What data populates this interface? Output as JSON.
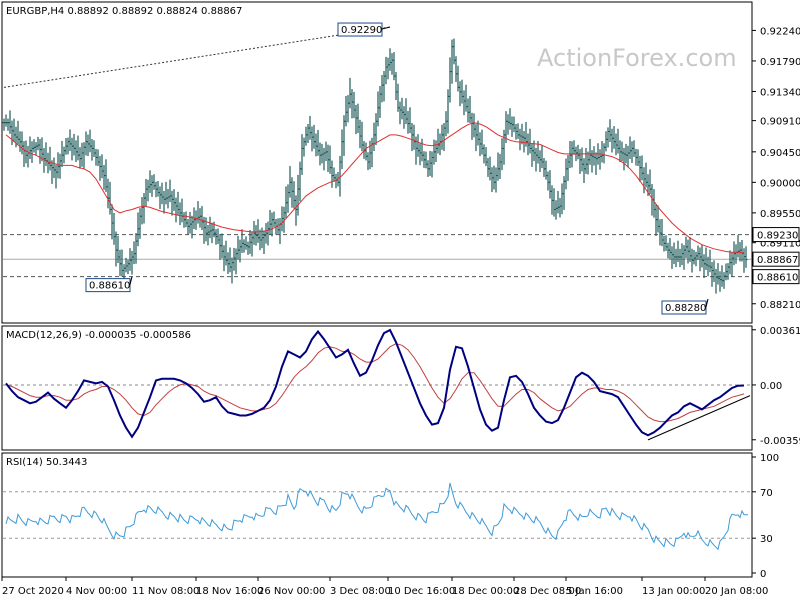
{
  "colors": {
    "candle": "#1e5a5a",
    "ma": "#e03030",
    "macd": "#000080",
    "signal": "#c04040",
    "rsi": "#3c9ad8",
    "grid": "#888888",
    "box_border": "#1e4a8a",
    "background": "#ffffff"
  },
  "watermark": "ActionForex.com",
  "chart_data": [
    {
      "type": "candlestick",
      "title": "EURGBP,H4 0.88892 0.88892 0.88824 0.88867",
      "y_ticks": [
        "0.92240",
        "0.91790",
        "0.91340",
        "0.90910",
        "0.90450",
        "0.90000",
        "0.89550",
        "0.89110",
        "0.88210"
      ],
      "ylim": [
        0.88,
        0.926
      ],
      "x_ticks": [
        "27 Oct 2020",
        "4 Nov 00:00",
        "11 Nov 08:00",
        "18 Nov 16:00",
        "26 Nov 00:00",
        "3 Dec 08:00",
        "10 Dec 16:00",
        "18 Dec 00:00",
        "28 Dec 08:00",
        "5 Jan 16:00",
        "13 Jan 00:00",
        "20 Jan 08:00"
      ],
      "levels": [
        {
          "value": 0.8923,
          "label": "0.89230",
          "style": "dashed"
        },
        {
          "value": 0.8861,
          "label": "0.88610",
          "style": "dashed"
        },
        {
          "value": 0.88867,
          "label": "0.88867",
          "style": "solid"
        }
      ],
      "annotations": [
        {
          "label": "0.92290",
          "x": 64,
          "value": 0.9229
        },
        {
          "label": "0.88610",
          "x": 21,
          "value": 0.8861
        },
        {
          "label": "0.88280",
          "x": 117,
          "value": 0.8828
        }
      ],
      "trendline": {
        "from": [
          0,
          0.914
        ],
        "to": [
          64,
          0.9229
        ]
      },
      "series": [
        {
          "name": "price",
          "values": [
            0.9088,
            0.907,
            0.906,
            0.904,
            0.905,
            0.9055,
            0.9035,
            0.9025,
            0.9015,
            0.904,
            0.906,
            0.905,
            0.9035,
            0.906,
            0.905,
            0.903,
            0.901,
            0.896,
            0.89,
            0.887,
            0.888,
            0.8895,
            0.895,
            0.899,
            0.9,
            0.8985,
            0.8975,
            0.898,
            0.8965,
            0.895,
            0.8935,
            0.8945,
            0.895,
            0.8925,
            0.893,
            0.8915,
            0.889,
            0.8875,
            0.8895,
            0.891,
            0.8905,
            0.8925,
            0.8915,
            0.8925,
            0.8945,
            0.893,
            0.8955,
            0.9,
            0.896,
            0.905,
            0.908,
            0.906,
            0.904,
            0.9045,
            0.901,
            0.9,
            0.909,
            0.913,
            0.9095,
            0.9055,
            0.903,
            0.907,
            0.913,
            0.917,
            0.918,
            0.911,
            0.91,
            0.908,
            0.905,
            0.904,
            0.902,
            0.9045,
            0.906,
            0.909,
            0.92,
            0.914,
            0.912,
            0.9095,
            0.907,
            0.905,
            0.902,
            0.9,
            0.903,
            0.909,
            0.9085,
            0.907,
            0.9065,
            0.905,
            0.904,
            0.903,
            0.9,
            0.896,
            0.8965,
            0.902,
            0.905,
            0.904,
            0.902,
            0.904,
            0.9035,
            0.904,
            0.9075,
            0.906,
            0.9045,
            0.904,
            0.905,
            0.903,
            0.9005,
            0.899,
            0.8945,
            0.8915,
            0.89,
            0.889,
            0.889,
            0.8905,
            0.8885,
            0.8895,
            0.888,
            0.8875,
            0.886,
            0.8855,
            0.8875,
            0.8895,
            0.89,
            0.8886
          ]
        },
        {
          "name": "ma",
          "values": [
            0.907,
            0.9063,
            0.9055,
            0.9048,
            0.9043,
            0.904,
            0.9035,
            0.903,
            0.9028,
            0.9025,
            0.9025,
            0.9025,
            0.9022,
            0.902,
            0.9015,
            0.9005,
            0.899,
            0.8975,
            0.896,
            0.8955,
            0.8958,
            0.896,
            0.8963,
            0.8965,
            0.8963,
            0.896,
            0.8957,
            0.8955,
            0.8953,
            0.8951,
            0.895,
            0.8948,
            0.8946,
            0.8943,
            0.894,
            0.8937,
            0.8934,
            0.8932,
            0.893,
            0.8929,
            0.8928,
            0.8927,
            0.8927,
            0.8928,
            0.893,
            0.8934,
            0.894,
            0.895,
            0.896,
            0.897,
            0.898,
            0.8986,
            0.8992,
            0.8996,
            0.9,
            0.9003,
            0.901,
            0.902,
            0.903,
            0.904,
            0.905,
            0.9055,
            0.906,
            0.9065,
            0.907,
            0.907,
            0.9068,
            0.9065,
            0.9062,
            0.9058,
            0.9055,
            0.9054,
            0.9056,
            0.9062,
            0.9068,
            0.9074,
            0.908,
            0.9085,
            0.9088,
            0.9086,
            0.9082,
            0.9076,
            0.907,
            0.9066,
            0.9062,
            0.906,
            0.9059,
            0.9058,
            0.9057,
            0.9056,
            0.9052,
            0.9048,
            0.9044,
            0.9042,
            0.9042,
            0.9042,
            0.9042,
            0.9042,
            0.9042,
            0.9042,
            0.904,
            0.9038,
            0.9034,
            0.9028,
            0.902,
            0.901,
            0.8998,
            0.8985,
            0.8972,
            0.896,
            0.895,
            0.894,
            0.8932,
            0.8925,
            0.8918,
            0.8913,
            0.8908,
            0.8905,
            0.8902,
            0.89,
            0.8898,
            0.8897,
            0.8897,
            0.8896
          ]
        }
      ]
    },
    {
      "type": "line",
      "title": "MACD(12,26,9) -0.000035 -0.000586",
      "y_ticks": [
        "0.003615",
        "0.00",
        "-0.003592"
      ],
      "ylim": [
        -0.004,
        0.0036
      ],
      "zero_label": "0.00",
      "series": [
        {
          "name": "MACD",
          "values": [
            0.0001,
            -0.0004,
            -0.0008,
            -0.001,
            -0.0012,
            -0.0011,
            -0.0008,
            -0.0005,
            -0.0009,
            -0.0012,
            -0.0015,
            -0.001,
            -0.0004,
            0.0003,
            0.0002,
            0.0001,
            0.0002,
            -0.0001,
            -0.001,
            -0.002,
            -0.0028,
            -0.0034,
            -0.0028,
            -0.0018,
            -0.0008,
            0.0003,
            0.0004,
            0.0004,
            0.0004,
            0.0003,
            0.0001,
            -0.0002,
            -0.0006,
            -0.0011,
            -0.001,
            -0.0008,
            -0.0014,
            -0.0018,
            -0.0019,
            -0.002,
            -0.002,
            -0.0019,
            -0.0017,
            -0.0015,
            -0.001,
            -0.0001,
            0.0012,
            0.0022,
            0.002,
            0.0018,
            0.0022,
            0.003,
            0.0035,
            0.003,
            0.0024,
            0.0018,
            0.002,
            0.0023,
            0.0014,
            0.0006,
            0.0008,
            0.0016,
            0.0026,
            0.0034,
            0.0036,
            0.0028,
            0.0018,
            0.0008,
            -0.0002,
            -0.0012,
            -0.002,
            -0.0026,
            -0.0025,
            -0.0015,
            0.001,
            0.0025,
            0.0024,
            0.0012,
            -0.0002,
            -0.0016,
            -0.0026,
            -0.003,
            -0.0028,
            -0.001,
            0.0005,
            0.0006,
            0.0002,
            -0.0006,
            -0.0015,
            -0.002,
            -0.0024,
            -0.0025,
            -0.0023,
            -0.0015,
            -0.0005,
            0.0005,
            0.0008,
            0.0006,
            0.0002,
            -0.0004,
            -0.0005,
            -0.0006,
            -0.0008,
            -0.0014,
            -0.002,
            -0.0026,
            -0.0031,
            -0.0033,
            -0.0031,
            -0.0028,
            -0.0024,
            -0.002,
            -0.0018,
            -0.0014,
            -0.0012,
            -0.0014,
            -0.0016,
            -0.0013,
            -0.001,
            -0.0008,
            -0.0005,
            -0.0002,
            -5e-05,
            -3.5e-05
          ]
        },
        {
          "name": "Signal",
          "values": [
            0.0,
            -0.0001,
            -0.0003,
            -0.0005,
            -0.0007,
            -0.0008,
            -0.0008,
            -0.0007,
            -0.0007,
            -0.0008,
            -0.001,
            -0.001,
            -0.0009,
            -0.0006,
            -0.0004,
            -0.0003,
            -0.0001,
            -0.0001,
            -0.0003,
            -0.0006,
            -0.001,
            -0.0015,
            -0.0019,
            -0.002,
            -0.0018,
            -0.0013,
            -0.0009,
            -0.0005,
            -0.0002,
            0.0,
            0.0001,
            0.0,
            -0.0001,
            -0.0004,
            -0.0006,
            -0.0007,
            -0.0009,
            -0.0011,
            -0.0013,
            -0.0015,
            -0.0016,
            -0.0017,
            -0.0017,
            -0.0016,
            -0.0015,
            -0.0012,
            -0.0007,
            -0.0001,
            0.0005,
            0.0009,
            0.0012,
            0.0016,
            0.0021,
            0.0024,
            0.0025,
            0.0024,
            0.0022,
            0.0022,
            0.002,
            0.0017,
            0.0015,
            0.0015,
            0.0017,
            0.0021,
            0.0025,
            0.0027,
            0.0026,
            0.0023,
            0.0018,
            0.0012,
            0.0005,
            -0.0002,
            -0.0008,
            -0.0012,
            -0.0009,
            -0.0003,
            0.0004,
            0.0008,
            0.0008,
            0.0003,
            -0.0003,
            -0.0009,
            -0.0014,
            -0.0014,
            -0.001,
            -0.0006,
            -0.0003,
            -0.0003,
            -0.0005,
            -0.0009,
            -0.0012,
            -0.0015,
            -0.0017,
            -0.0016,
            -0.0014,
            -0.001,
            -0.0006,
            -0.0003,
            -0.0002,
            -0.0002,
            -0.0003,
            -0.0003,
            -0.0004,
            -0.0006,
            -0.0009,
            -0.0013,
            -0.0017,
            -0.0021,
            -0.0023,
            -0.0024,
            -0.0024,
            -0.0023,
            -0.0022,
            -0.002,
            -0.0018,
            -0.0017,
            -0.0016,
            -0.0015,
            -0.0014,
            -0.0012,
            -0.001,
            -0.0008,
            -0.0007,
            -0.000586
          ]
        }
      ],
      "trendline": {
        "from": [
          107,
          -0.0036
        ],
        "to": [
          124,
          -0.0007
        ]
      }
    },
    {
      "type": "line",
      "title": "RSI(14) 50.3443",
      "y_ticks": [
        "100",
        "70",
        "30",
        "0"
      ],
      "ylim": [
        0,
        100
      ],
      "levels": [
        70,
        30
      ],
      "series": [
        {
          "name": "RSI",
          "values": [
            46,
            45,
            47,
            44,
            43,
            46,
            44,
            45,
            48,
            47,
            49,
            46,
            50,
            54,
            52,
            50,
            46,
            38,
            33,
            32,
            36,
            42,
            50,
            56,
            55,
            54,
            52,
            50,
            49,
            47,
            45,
            46,
            47,
            44,
            43,
            41,
            40,
            38,
            42,
            46,
            47,
            50,
            48,
            52,
            55,
            54,
            58,
            64,
            56,
            70,
            72,
            66,
            61,
            62,
            56,
            54,
            66,
            69,
            62,
            56,
            54,
            60,
            66,
            70,
            71,
            58,
            56,
            54,
            50,
            48,
            46,
            52,
            56,
            60,
            74,
            60,
            56,
            52,
            48,
            45,
            40,
            36,
            42,
            56,
            55,
            52,
            51,
            48,
            46,
            43,
            38,
            32,
            33,
            46,
            52,
            50,
            47,
            52,
            50,
            51,
            56,
            52,
            49,
            48,
            50,
            45,
            40,
            37,
            30,
            27,
            26,
            25,
            27,
            36,
            30,
            35,
            28,
            27,
            24,
            24,
            35,
            48,
            52,
            50.3
          ]
        }
      ]
    }
  ]
}
